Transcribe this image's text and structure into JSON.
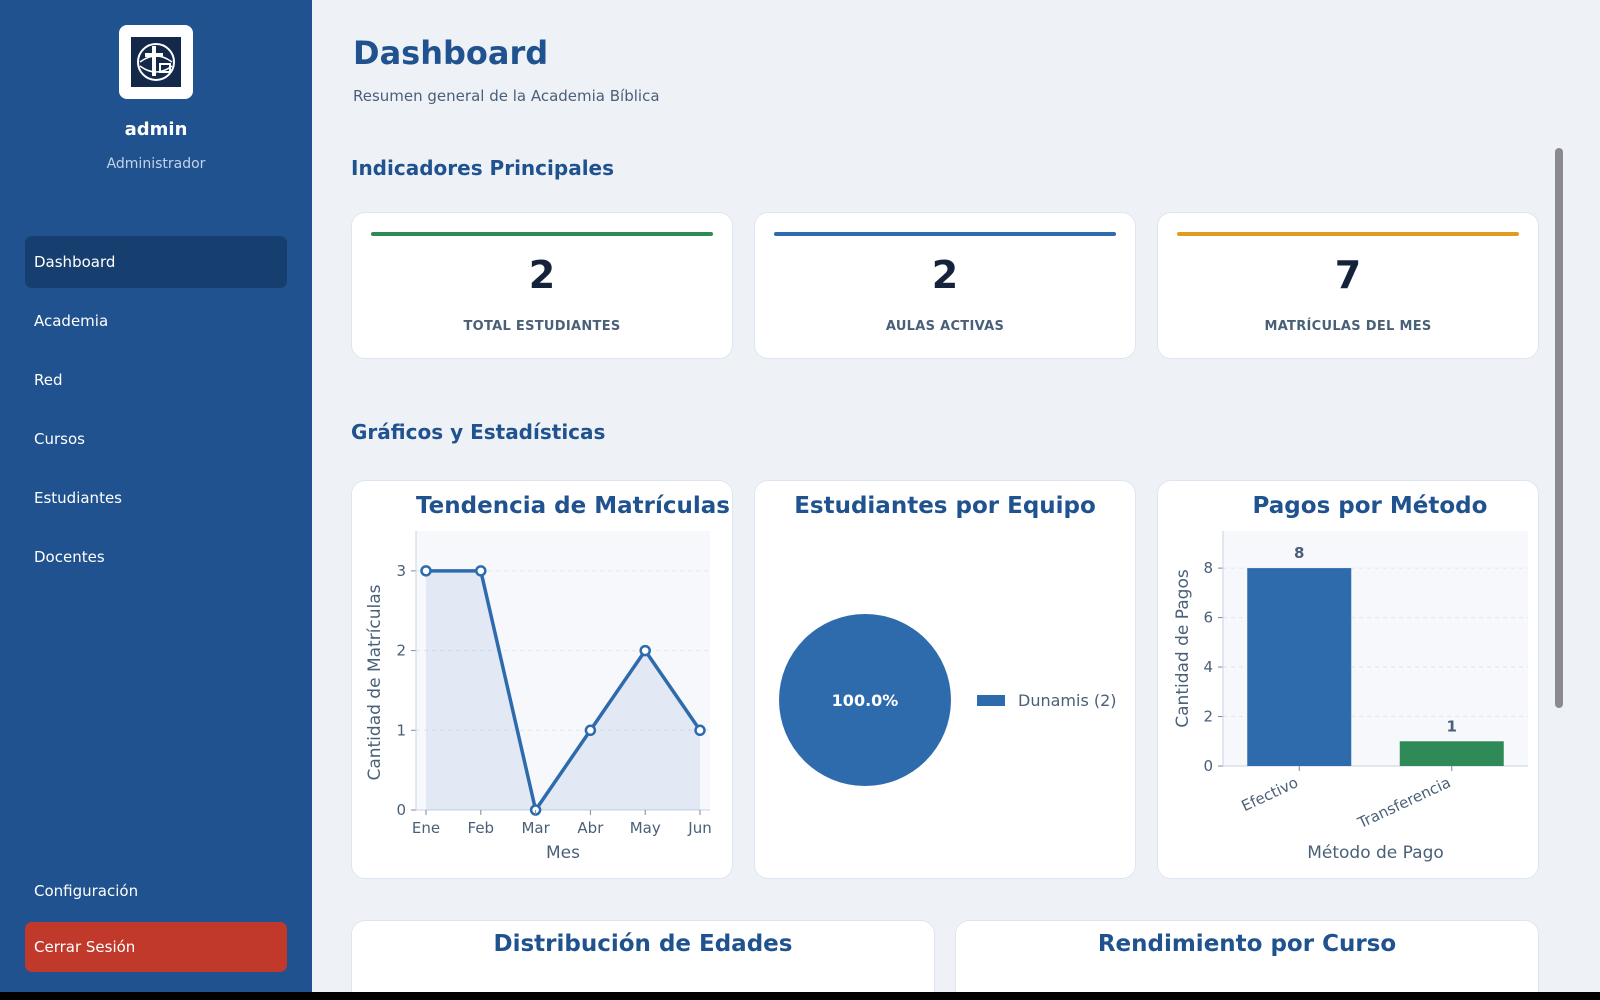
{
  "sidebar": {
    "user": {
      "name": "admin",
      "role": "Administrador"
    },
    "nav": [
      {
        "label": "Dashboard",
        "active": true
      },
      {
        "label": "Academia"
      },
      {
        "label": "Red"
      },
      {
        "label": "Cursos"
      },
      {
        "label": "Estudiantes"
      },
      {
        "label": "Docentes"
      }
    ],
    "config_label": "Configuración",
    "logout_label": "Cerrar Sesión"
  },
  "header": {
    "title": "Dashboard",
    "subtitle": "Resumen general de la Academia Bíblica"
  },
  "sections": {
    "kpis_title": "Indicadores Principales",
    "charts_title": "Gráficos y Estadísticas"
  },
  "kpis": [
    {
      "value": "2",
      "label": "TOTAL ESTUDIANTES",
      "color": "#2e8b57"
    },
    {
      "value": "2",
      "label": "AULAS ACTIVAS",
      "color": "#2e6bad"
    },
    {
      "value": "7",
      "label": "MATRÍCULAS DEL MES",
      "color": "#e39b1f"
    }
  ],
  "chart_data": [
    {
      "type": "line",
      "title": "Tendencia de Matrículas",
      "xlabel": "Mes",
      "ylabel": "Cantidad de Matrículas",
      "categories": [
        "Ene",
        "Feb",
        "Mar",
        "Abr",
        "May",
        "Jun"
      ],
      "values": [
        3,
        3,
        0,
        1,
        2,
        1
      ],
      "ylim": [
        0,
        3.5
      ],
      "yticks": [
        0,
        1,
        2,
        3
      ],
      "grid": true,
      "area": true,
      "color": "#2e6bad"
    },
    {
      "type": "pie",
      "title": "Estudiantes por Equipo",
      "slices": [
        {
          "label": "Dunamis (2)",
          "value": 2,
          "pct_label": "100.0%",
          "color": "#2e6bad"
        }
      ],
      "legend": "right"
    },
    {
      "type": "bar",
      "title": "Pagos por Método",
      "xlabel": "Método de Pago",
      "ylabel": "Cantidad de Pagos",
      "categories": [
        "Efectivo",
        "Transferencia"
      ],
      "values": [
        8,
        1
      ],
      "colors": [
        "#2e6bad",
        "#2e8b57"
      ],
      "ylim": [
        0,
        9.5
      ],
      "yticks": [
        0,
        2,
        4,
        6,
        8
      ],
      "grid": true
    }
  ],
  "lower_cards": [
    {
      "title": "Distribución de Edades"
    },
    {
      "title": "Rendimiento por Curso"
    }
  ]
}
